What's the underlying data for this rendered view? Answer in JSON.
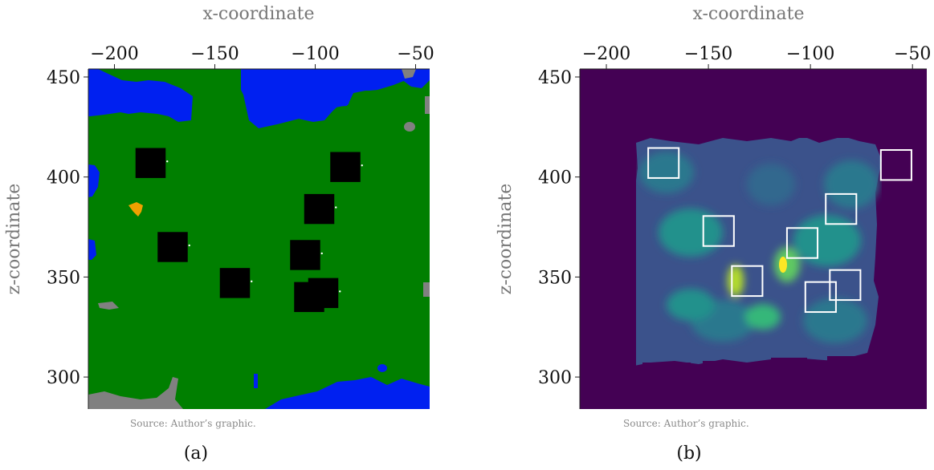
{
  "chart_data": [
    {
      "type": "heatmap",
      "panel": "a",
      "caption": "(a)",
      "source": "Source: Author’s graphic.",
      "xlabel": "x-coordinate",
      "ylabel": "z-coordinate",
      "xlim": [
        -213,
        -43
      ],
      "ylim": [
        284,
        454
      ],
      "xticks": [
        -200,
        -150,
        -100,
        -50
      ],
      "yticks": [
        300,
        350,
        400,
        450
      ],
      "xticklabels": [
        "−200",
        "−150",
        "−100",
        "−50"
      ],
      "yticklabels": [
        "300",
        "350",
        "400",
        "450"
      ],
      "colors": {
        "land": "#007f00",
        "water": "#0020f0",
        "stone": "#808080",
        "marker": "#000000",
        "lava": "#f0a000"
      },
      "squares": [
        {
          "x": -182,
          "y": 407
        },
        {
          "x": -171,
          "y": 365
        },
        {
          "x": -85,
          "y": 405
        },
        {
          "x": -98,
          "y": 384
        },
        {
          "x": -105,
          "y": 361
        },
        {
          "x": -140,
          "y": 347
        },
        {
          "x": -103,
          "y": 340
        },
        {
          "x": -96,
          "y": 342
        }
      ],
      "grid": false
    },
    {
      "type": "heatmap",
      "panel": "b",
      "caption": "(b)",
      "source": "Source: Author’s graphic.",
      "xlabel": "x-coordinate",
      "ylabel": "z-coordinate",
      "xlim": [
        -213,
        -43
      ],
      "ylim": [
        284,
        454
      ],
      "xticks": [
        -200,
        -150,
        -100,
        -50
      ],
      "yticks": [
        300,
        350,
        400,
        450
      ],
      "xticklabels": [
        "−200",
        "−150",
        "−100",
        "−50"
      ],
      "yticklabels": [
        "300",
        "350",
        "400",
        "450"
      ],
      "colormap": "viridis",
      "outlined_squares": [
        {
          "x": -172,
          "y": 407
        },
        {
          "x": -145,
          "y": 373
        },
        {
          "x": -131,
          "y": 348
        },
        {
          "x": -104,
          "y": 367
        },
        {
          "x": -95,
          "y": 340
        },
        {
          "x": -85,
          "y": 384
        },
        {
          "x": -83,
          "y": 346
        },
        {
          "x": -58,
          "y": 406
        }
      ],
      "grid": false
    }
  ]
}
